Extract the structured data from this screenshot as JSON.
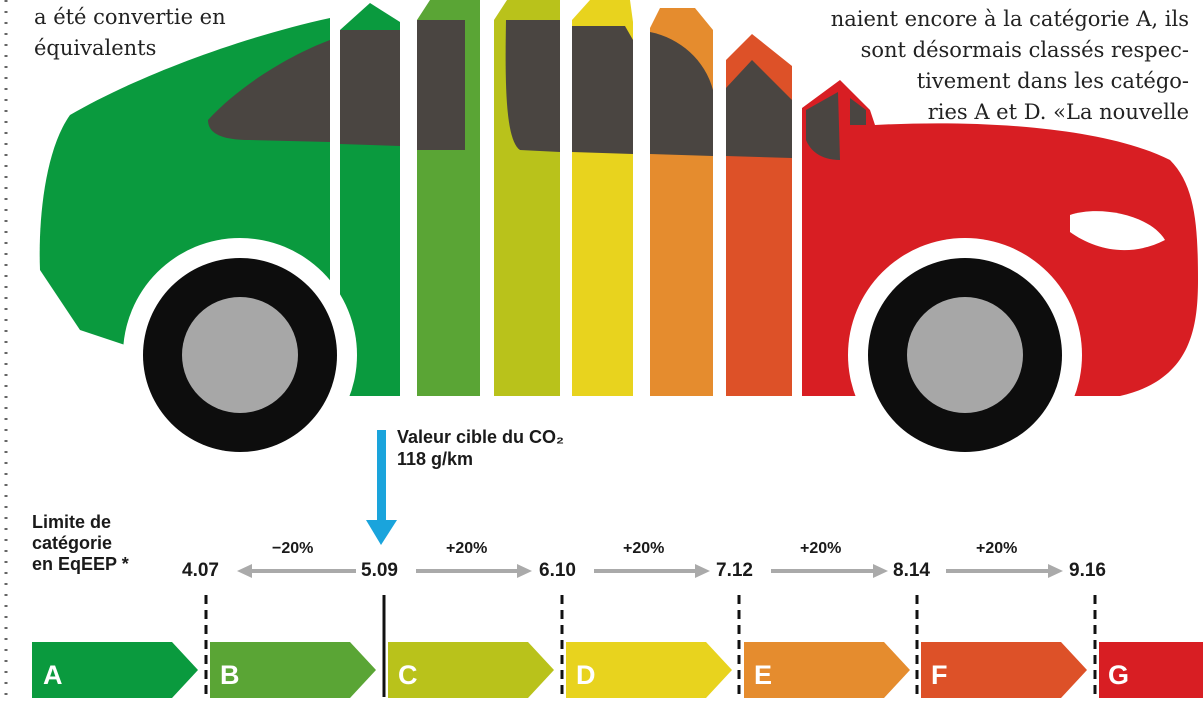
{
  "article": {
    "left_lines": [
      "a été convertie en",
      "équivalents"
    ],
    "right_lines": [
      "naient encore à la catégorie A, ils",
      "sont désormais classés respec-",
      "tivement dans les catégo-",
      "ries A et D. «La nouvelle"
    ]
  },
  "labels": {
    "limit_title_lines": [
      "Limite de",
      "catégorie",
      "en EqEEP *"
    ],
    "target_line1": "Valeur cible du CO₂",
    "target_line2": "118 g/km"
  },
  "scale": {
    "values": [
      "4.07",
      "5.09",
      "6.10",
      "7.12",
      "8.14",
      "9.16"
    ],
    "steps": [
      "−20%",
      "+20%",
      "+20%",
      "+20%",
      "+20%"
    ]
  },
  "categories": [
    {
      "label": "A",
      "color": "#0a9a3e"
    },
    {
      "label": "B",
      "color": "#5aa535"
    },
    {
      "label": "C",
      "color": "#b9c21b"
    },
    {
      "label": "D",
      "color": "#e8d31e"
    },
    {
      "label": "E",
      "color": "#e58c2e"
    },
    {
      "label": "F",
      "color": "#dd5128"
    },
    {
      "label": "G",
      "color": "#d81e23"
    }
  ],
  "colors": {
    "window": "#4a4541",
    "tire": "#0d0d0d",
    "hub": "#a7a7a7",
    "target_arrow": "#1aa4dc",
    "scale_arrow": "#aaaaaa"
  }
}
